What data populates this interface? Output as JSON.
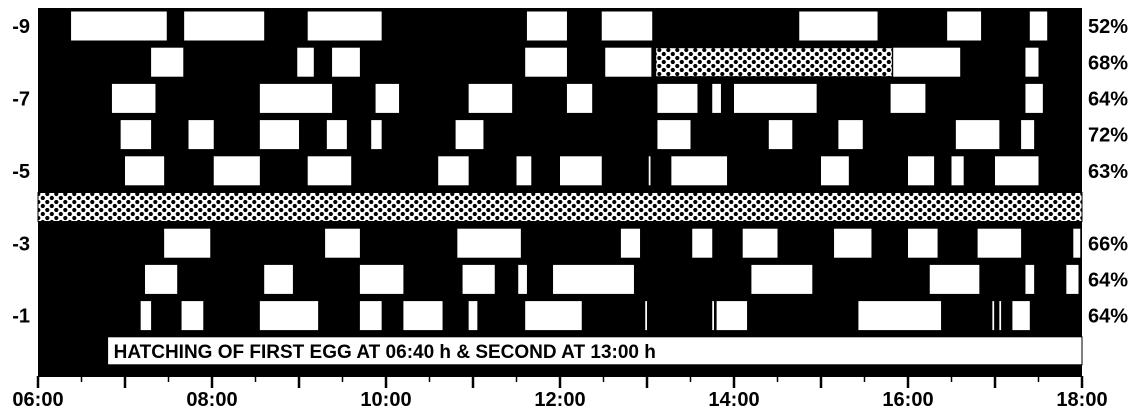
{
  "chart_data": {
    "type": "actogram",
    "title": "",
    "xlabel": "",
    "ylabel": "",
    "x_unit": "hours",
    "xlim": [
      6,
      18
    ],
    "x_ticks": [
      {
        "value": 6,
        "label": "06:00"
      },
      {
        "value": 8,
        "label": "08:00"
      },
      {
        "value": 10,
        "label": "10:00"
      },
      {
        "value": 12,
        "label": "12:00"
      },
      {
        "value": 14,
        "label": "14:00"
      },
      {
        "value": 16,
        "label": "16:00"
      },
      {
        "value": 18,
        "label": "18:00"
      }
    ],
    "minor_tick_step_hours": 0.5,
    "colors": {
      "background": "#000000",
      "bout": "#ffffff",
      "banner": "#ffffff"
    },
    "rows": [
      {
        "day": "-9",
        "label": "-9",
        "percent": "52%",
        "bouts": [
          [
            6.38,
            7.48
          ],
          [
            7.68,
            8.6
          ],
          [
            9.1,
            9.95
          ],
          [
            11.62,
            12.08
          ],
          [
            12.48,
            13.06
          ],
          [
            14.75,
            15.65
          ],
          [
            16.45,
            16.84
          ],
          [
            17.4,
            17.6
          ]
        ],
        "dotted": []
      },
      {
        "day": "-8",
        "label": "",
        "percent": "68%",
        "bouts": [
          [
            7.3,
            7.67
          ],
          [
            8.98,
            9.17
          ],
          [
            9.38,
            9.7
          ],
          [
            11.6,
            12.08
          ],
          [
            12.52,
            13.05
          ],
          [
            15.83,
            16.6
          ],
          [
            17.35,
            17.5
          ]
        ],
        "dotted": [
          [
            13.1,
            15.82
          ]
        ]
      },
      {
        "day": "-7",
        "label": "-7",
        "percent": "64%",
        "bouts": [
          [
            6.85,
            7.35
          ],
          [
            8.55,
            9.38
          ],
          [
            9.88,
            10.15
          ],
          [
            10.95,
            11.45
          ],
          [
            12.08,
            12.37
          ],
          [
            13.12,
            13.58
          ],
          [
            13.75,
            13.85
          ],
          [
            14.0,
            14.95
          ],
          [
            15.8,
            16.2
          ],
          [
            17.35,
            17.55
          ]
        ],
        "dotted": []
      },
      {
        "day": "-6",
        "label": "",
        "percent": "72%",
        "bouts": [
          [
            6.95,
            7.3
          ],
          [
            7.73,
            8.02
          ],
          [
            8.55,
            9.0
          ],
          [
            9.32,
            9.55
          ],
          [
            9.83,
            9.95
          ],
          [
            10.8,
            11.12
          ],
          [
            13.12,
            13.5
          ],
          [
            14.4,
            14.67
          ],
          [
            15.2,
            15.48
          ],
          [
            16.55,
            17.05
          ],
          [
            17.3,
            17.45
          ]
        ],
        "dotted": []
      },
      {
        "day": "-5",
        "label": "-5",
        "percent": "63%",
        "bouts": [
          [
            7.0,
            7.45
          ],
          [
            8.02,
            8.55
          ],
          [
            9.1,
            9.6
          ],
          [
            10.6,
            10.95
          ],
          [
            11.5,
            11.67
          ],
          [
            12.0,
            12.48
          ],
          [
            13.02,
            13.04
          ],
          [
            13.28,
            13.92
          ],
          [
            15.0,
            15.32
          ],
          [
            16.0,
            16.3
          ],
          [
            16.5,
            16.64
          ],
          [
            17.0,
            17.5
          ]
        ],
        "dotted": []
      },
      {
        "day": "-4",
        "label": "",
        "percent": "",
        "bouts": [],
        "dotted": [
          [
            6.0,
            18.0
          ]
        ]
      },
      {
        "day": "-3",
        "label": "-3",
        "percent": "66%",
        "bouts": [
          [
            7.45,
            7.98
          ],
          [
            9.3,
            9.7
          ],
          [
            10.82,
            11.55
          ],
          [
            12.7,
            12.92
          ],
          [
            13.52,
            13.75
          ],
          [
            14.1,
            14.5
          ],
          [
            15.15,
            15.58
          ],
          [
            16.0,
            16.34
          ],
          [
            16.8,
            17.3
          ],
          [
            17.9,
            17.98
          ]
        ],
        "dotted": []
      },
      {
        "day": "-2",
        "label": "",
        "percent": "64%",
        "bouts": [
          [
            7.23,
            7.6
          ],
          [
            8.6,
            8.93
          ],
          [
            9.7,
            10.2
          ],
          [
            10.88,
            11.25
          ],
          [
            11.52,
            11.62
          ],
          [
            11.92,
            12.85
          ],
          [
            14.2,
            14.9
          ],
          [
            16.25,
            16.82
          ],
          [
            17.35,
            17.45
          ],
          [
            17.82,
            17.96
          ]
        ],
        "dotted": []
      },
      {
        "day": "-1",
        "label": "-1",
        "percent": "64%",
        "bouts": [
          [
            7.18,
            7.3
          ],
          [
            7.65,
            7.9
          ],
          [
            8.55,
            9.22
          ],
          [
            9.7,
            9.95
          ],
          [
            10.2,
            10.65
          ],
          [
            10.95,
            11.05
          ],
          [
            11.6,
            12.25
          ],
          [
            12.98,
            13.0
          ],
          [
            13.75,
            13.77
          ],
          [
            13.8,
            14.15
          ],
          [
            15.43,
            16.38
          ],
          [
            16.97,
            16.99
          ],
          [
            17.05,
            17.07
          ],
          [
            17.2,
            17.4
          ]
        ],
        "dotted": []
      }
    ],
    "banner": {
      "text": "HATCHING OF FIRST EGG AT 06:40 h & SECOND AT 13:00 h",
      "x_start": 6.8,
      "x_end": 18.0
    }
  }
}
